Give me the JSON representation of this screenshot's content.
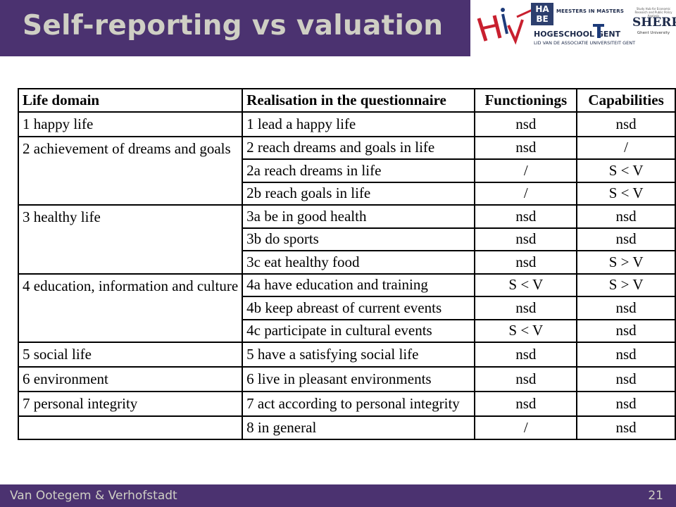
{
  "slide": {
    "title": "Self-reporting vs valuation",
    "footer_author": "Van Ootegem & Verhofstadt",
    "page_number": "21"
  },
  "logos": {
    "hava_line1": "HA",
    "hava_line2": "BE",
    "meesters": "MEESTERS IN MASTERS",
    "hogeschool": "HOGESCHOOL GENT",
    "hogeschool_sub": "LID VAN DE ASSOCIATIE UNIVERSITEIT GENT",
    "sherppa_tiny": "Study Hub for Economic Research and Public Policy Analysis",
    "sherppa": "SHERPPA",
    "sherppa_sub": "Ghent University"
  },
  "colors": {
    "header_bg": "#4b3270",
    "header_text": "#cfcfc4"
  },
  "table": {
    "headers": [
      "Life domain",
      "Realisation in the questionnaire",
      "Functionings",
      "Capabilities"
    ],
    "domains": {
      "d1": "1  happy life",
      "d2": "2  achievement of dreams and goals",
      "d3": "3  healthy life",
      "d4": "4 education, information and culture",
      "d5": "5  social life",
      "d6": "6  environment",
      "d7": "7  personal integrity",
      "d8": ""
    },
    "rows": [
      {
        "item": "1  lead a happy life",
        "func": "nsd",
        "cap": "nsd"
      },
      {
        "item": "2 reach dreams and goals in life",
        "func": "nsd",
        "cap": "/"
      },
      {
        "item": "2a reach dreams in life",
        "func": "/",
        "cap": "S < V"
      },
      {
        "item": "2b reach goals in life",
        "func": "/",
        "cap": "S < V"
      },
      {
        "item": "3a be in good health",
        "func": "nsd",
        "cap": "nsd"
      },
      {
        "item": "3b do sports",
        "func": "nsd",
        "cap": "nsd"
      },
      {
        "item": "3c eat healthy food",
        "func": "nsd",
        "cap": "S > V"
      },
      {
        "item": "4a have education and training",
        "func": "S < V",
        "cap": "S > V"
      },
      {
        "item": "4b keep abreast of current events",
        "func": "nsd",
        "cap": "nsd"
      },
      {
        "item": "4c participate in cultural events",
        "func": "S < V",
        "cap": "nsd"
      },
      {
        "item": "5  have a satisfying social life",
        "func": "nsd",
        "cap": "nsd"
      },
      {
        "item": "6  live in pleasant environments",
        "func": "nsd",
        "cap": "nsd"
      },
      {
        "item": "7  act according to personal integrity",
        "func": "nsd",
        "cap": "nsd"
      },
      {
        "item": "8  in general",
        "func": "/",
        "cap": "nsd"
      }
    ]
  }
}
